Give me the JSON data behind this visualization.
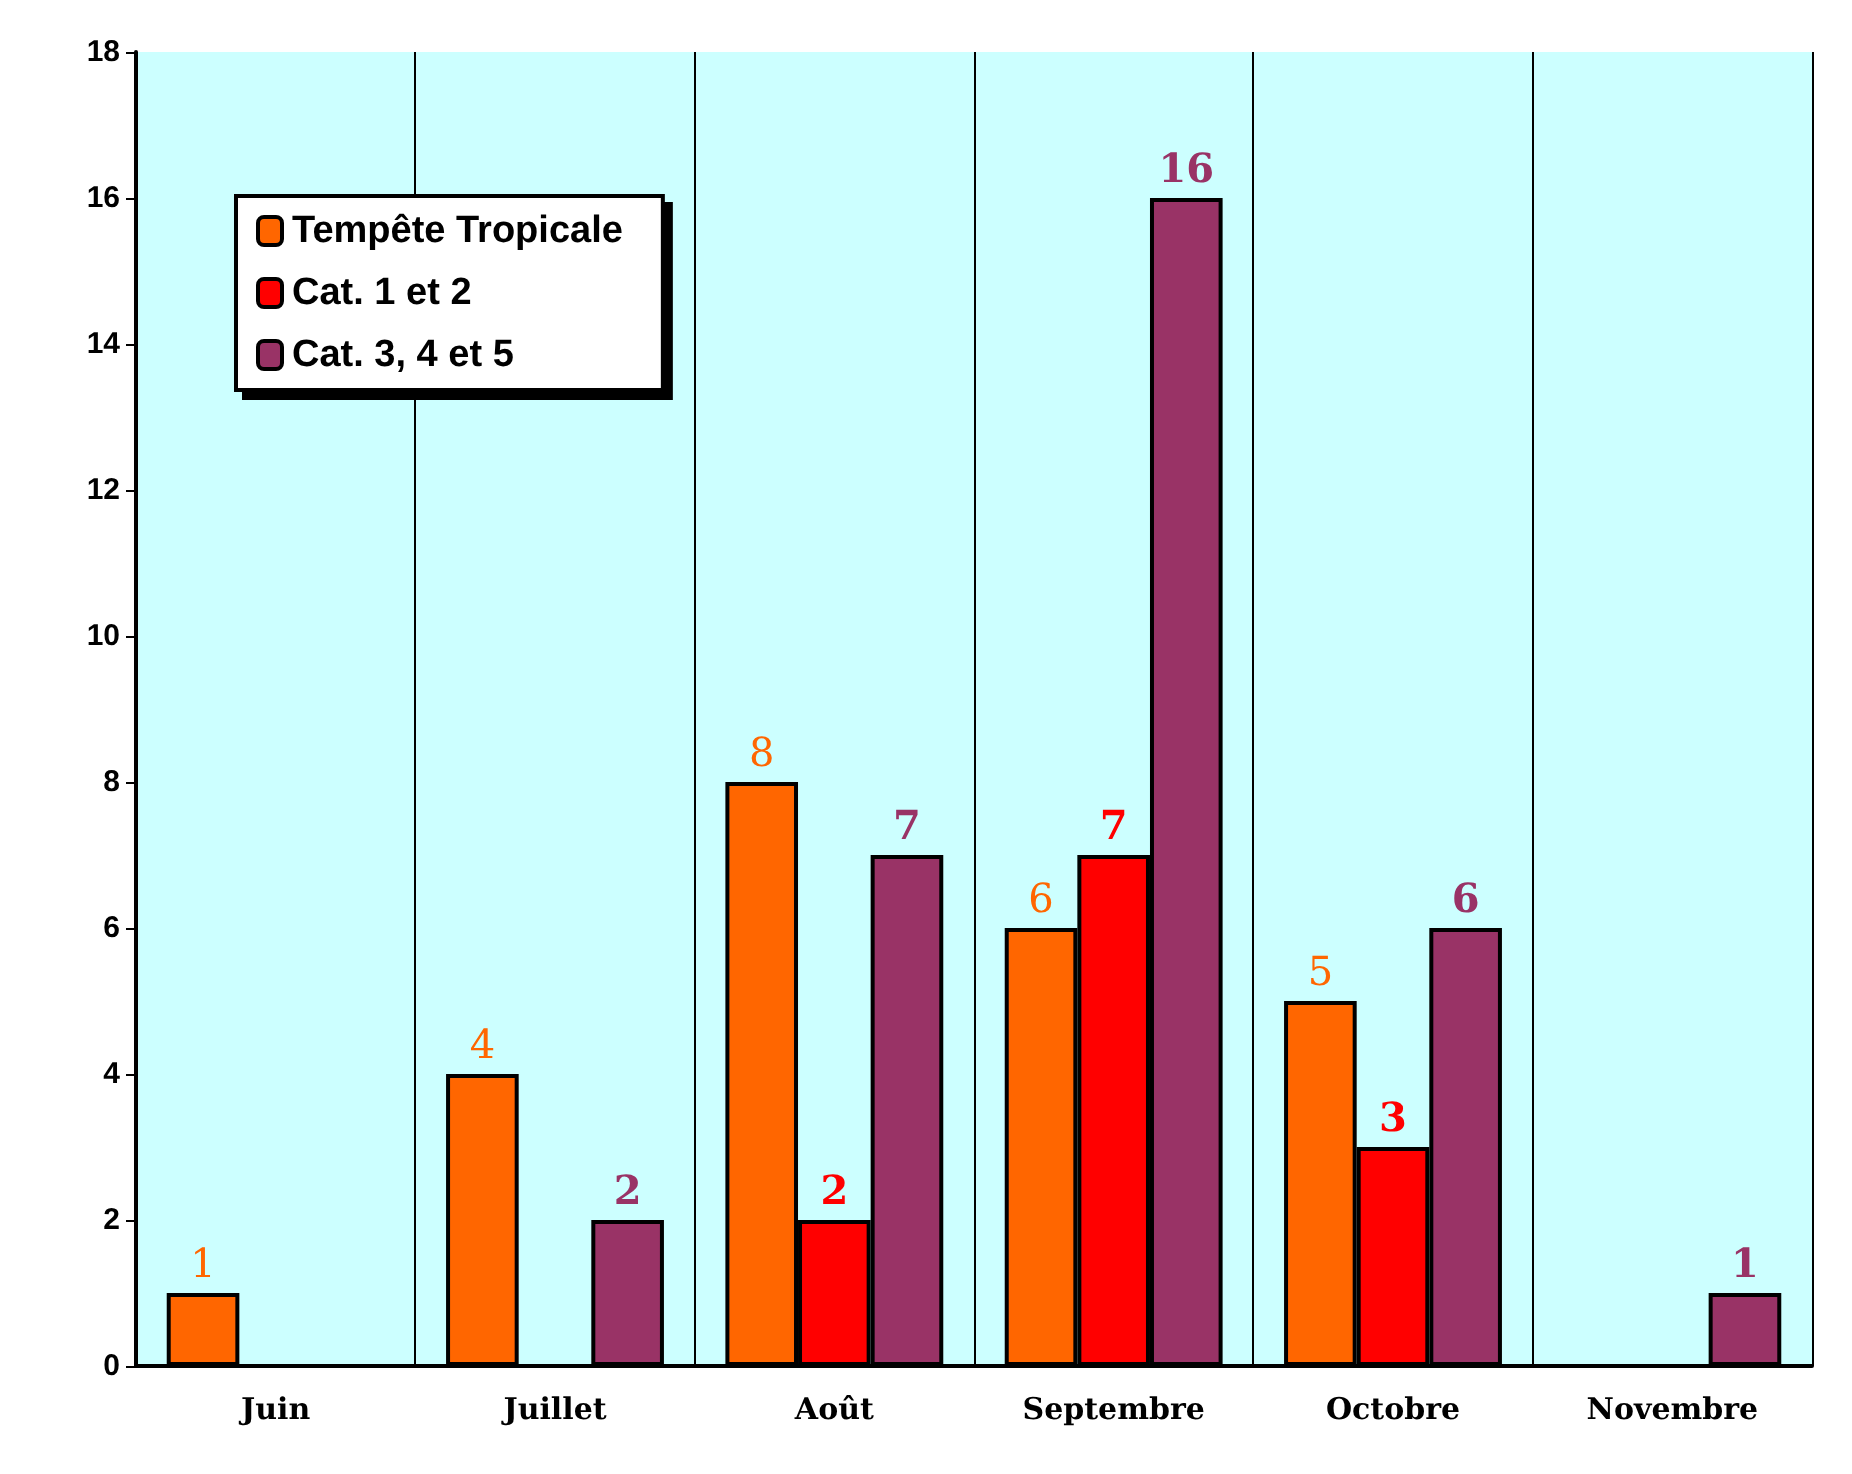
{
  "chart_data": {
    "type": "bar",
    "categories": [
      "Juin",
      "Juillet",
      "Août",
      "Septembre",
      "Octobre",
      "Novembre"
    ],
    "series": [
      {
        "name": "Tempête Tropicale",
        "color": "#ff6600",
        "values": [
          1,
          4,
          8,
          6,
          5,
          null
        ]
      },
      {
        "name": "Cat. 1 et 2",
        "color": "#ff0000",
        "values": [
          null,
          null,
          2,
          7,
          3,
          null
        ]
      },
      {
        "name": "Cat. 3, 4 et 5",
        "color": "#993366",
        "values": [
          null,
          2,
          7,
          16,
          6,
          1
        ]
      }
    ],
    "ylim": [
      0,
      18
    ],
    "yticks": [
      0,
      2,
      4,
      6,
      8,
      10,
      12,
      14,
      16,
      18
    ],
    "grid": "x",
    "legend": "top left",
    "data_labels": true
  }
}
